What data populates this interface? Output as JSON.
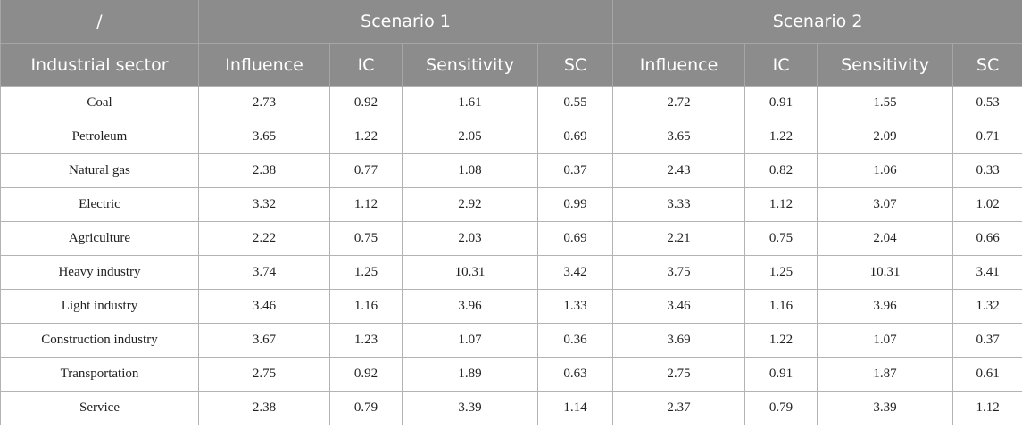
{
  "header": {
    "corner": "/",
    "scenario1": "Scenario 1",
    "scenario2": "Scenario 2",
    "columns": [
      "Industrial sector",
      "Influence",
      "IC",
      "Sensitivity",
      "SC",
      "Influence",
      "IC",
      "Sensitivity",
      "SC"
    ]
  },
  "rows": [
    [
      "Coal",
      "2.73",
      "0.92",
      "1.61",
      "0.55",
      "2.72",
      "0.91",
      "1.55",
      "0.53"
    ],
    [
      "Petroleum",
      "3.65",
      "1.22",
      "2.05",
      "0.69",
      "3.65",
      "1.22",
      "2.09",
      "0.71"
    ],
    [
      "Natural gas",
      "2.38",
      "0.77",
      "1.08",
      "0.37",
      "2.43",
      "0.82",
      "1.06",
      "0.33"
    ],
    [
      "Electric",
      "3.32",
      "1.12",
      "2.92",
      "0.99",
      "3.33",
      "1.12",
      "3.07",
      "1.02"
    ],
    [
      "Agriculture",
      "2.22",
      "0.75",
      "2.03",
      "0.69",
      "2.21",
      "0.75",
      "2.04",
      "0.66"
    ],
    [
      "Heavy industry",
      "3.74",
      "1.25",
      "10.31",
      "3.42",
      "3.75",
      "1.25",
      "10.31",
      "3.41"
    ],
    [
      "Light industry",
      "3.46",
      "1.16",
      "3.96",
      "1.33",
      "3.46",
      "1.16",
      "3.96",
      "1.32"
    ],
    [
      "Construction industry",
      "3.67",
      "1.23",
      "1.07",
      "0.36",
      "3.69",
      "1.22",
      "1.07",
      "0.37"
    ],
    [
      "Transportation",
      "2.75",
      "0.92",
      "1.89",
      "0.63",
      "2.75",
      "0.91",
      "1.87",
      "0.61"
    ],
    [
      "Service",
      "2.38",
      "0.79",
      "3.39",
      "1.14",
      "2.37",
      "0.79",
      "3.39",
      "1.12"
    ]
  ]
}
